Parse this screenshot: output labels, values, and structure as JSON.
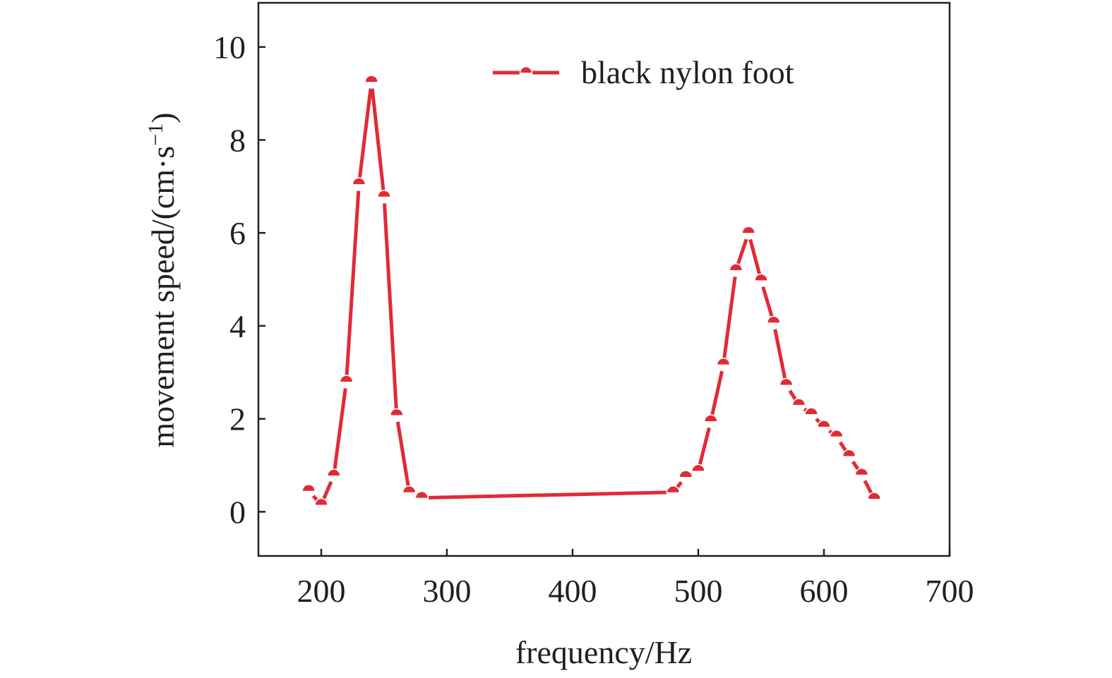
{
  "chart_data": {
    "type": "line",
    "title": "",
    "xlabel": "frequency/Hz",
    "ylabel_main": "movement speed/(cm·s",
    "ylabel_sup": "−1",
    "ylabel_close": ")",
    "xlim": [
      150,
      700
    ],
    "ylim": [
      -0.95,
      10.95
    ],
    "xticks": [
      200,
      300,
      400,
      500,
      600,
      700
    ],
    "yticks": [
      0,
      2,
      4,
      6,
      8,
      10
    ],
    "grid": false,
    "legend_position": "top-right",
    "series": [
      {
        "name": "black nylon foot",
        "color": "#e02b35",
        "x": [
          190,
          200,
          210,
          220,
          230,
          240,
          250,
          260,
          270,
          280,
          480,
          490,
          500,
          510,
          520,
          530,
          540,
          550,
          560,
          570,
          580,
          590,
          600,
          610,
          620,
          630,
          640
        ],
        "y": [
          0.45,
          0.15,
          0.78,
          2.8,
          7.05,
          9.25,
          6.78,
          2.08,
          0.42,
          0.3,
          0.42,
          0.75,
          0.88,
          1.95,
          3.17,
          5.2,
          6.0,
          4.98,
          4.07,
          2.73,
          2.3,
          2.1,
          1.83,
          1.62,
          1.2,
          0.8,
          0.28
        ]
      }
    ]
  }
}
